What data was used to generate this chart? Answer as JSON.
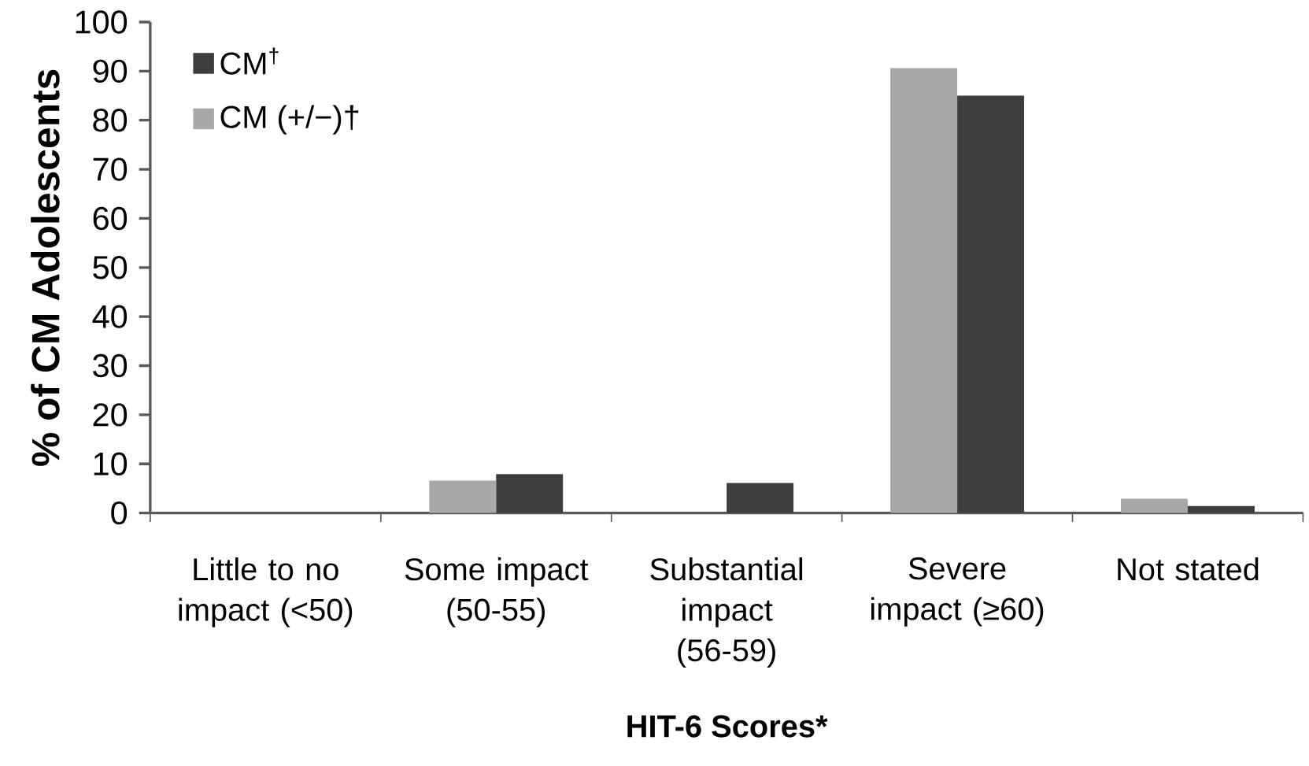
{
  "chart_data": {
    "type": "bar",
    "xlabel": "HIT-6 Scores*",
    "ylabel": "% of CM Adolescents",
    "categories": [
      "Little to no impact (<50)",
      "Some impact (50-55)",
      "Substantial impact (56-59)",
      "Severe impact (≥60)",
      "Not stated"
    ],
    "series": [
      {
        "name": "CM$^{†}$",
        "color": "#3d3d3d",
        "values": [
          0,
          7.9,
          6.1,
          85.0,
          1.4
        ]
      },
      {
        "name": "CM (+/−)†",
        "color": "#a7a8aa",
        "values": [
          0,
          6.6,
          0,
          90.6,
          2.9
        ]
      }
    ],
    "ylim": [
      0,
      100
    ],
    "yticks": [
      0,
      10,
      20,
      30,
      40,
      50,
      60,
      70,
      80,
      90,
      100
    ],
    "grid": false,
    "legend": "top left"
  }
}
